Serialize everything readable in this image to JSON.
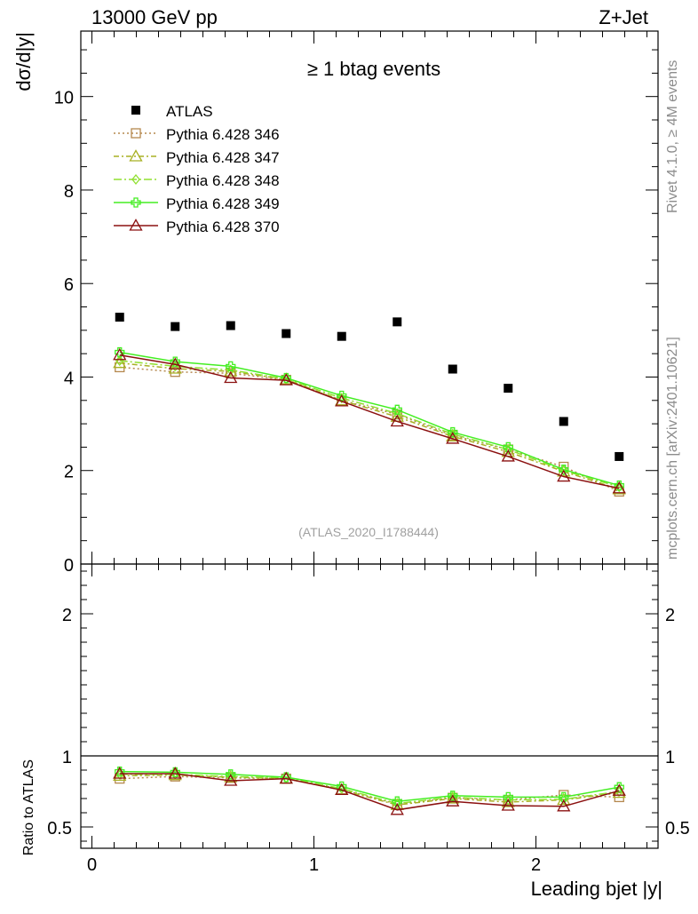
{
  "header": {
    "left": "13000 GeV pp",
    "right": "Z+Jet"
  },
  "side_labels": {
    "rivet": "Rivet 4.1.0, ≥ 4M events",
    "mcplots": "mcplots.cern.ch [arXiv:2401.10621]"
  },
  "chart_data": {
    "type": "scatter",
    "title": "≥ 1 btag events",
    "watermark": "(ATLAS_2020_I1788444)",
    "xlabel": "Leading bjet |y|",
    "ylabel": "dσ/d|y|",
    "ratio_ylabel": "Ratio to ATLAS",
    "xlim": [
      -0.05,
      2.55
    ],
    "ylim": [
      0,
      11.4
    ],
    "ratio_ylim": [
      0.35,
      2.35
    ],
    "x_ticks": [
      {
        "v": 0,
        "label": "0"
      },
      {
        "v": 1,
        "label": "1"
      },
      {
        "v": 2,
        "label": "2"
      }
    ],
    "y_ticks": [
      {
        "v": 0,
        "label": "0"
      },
      {
        "v": 2,
        "label": "2"
      },
      {
        "v": 4,
        "label": "4"
      },
      {
        "v": 6,
        "label": "6"
      },
      {
        "v": 8,
        "label": "8"
      },
      {
        "v": 10,
        "label": "10"
      }
    ],
    "ratio_ticks": [
      {
        "v": 0.5,
        "label": "0.5"
      },
      {
        "v": 1,
        "label": "1"
      },
      {
        "v": 2,
        "label": "2"
      }
    ],
    "x": [
      0.125,
      0.375,
      0.625,
      0.875,
      1.125,
      1.375,
      1.625,
      1.875,
      2.125,
      2.375
    ],
    "data": {
      "name": "ATLAS",
      "values": [
        5.28,
        5.08,
        5.1,
        4.93,
        4.87,
        5.18,
        4.17,
        3.76,
        3.05,
        2.3
      ]
    },
    "series": [
      {
        "name": "Pythia 6.428 346",
        "color": "#b5884e",
        "marker": "square",
        "dash": "2,3",
        "values": [
          4.21,
          4.11,
          4.08,
          3.94,
          3.5,
          3.2,
          2.75,
          2.45,
          2.08,
          1.55
        ],
        "ratio": [
          0.84,
          0.855,
          0.845,
          0.84,
          0.765,
          0.66,
          0.705,
          0.69,
          0.725,
          0.71
        ]
      },
      {
        "name": "Pythia 6.428 347",
        "color": "#a8b024",
        "marker": "triangle",
        "dash": "6,3,2,3",
        "values": [
          4.3,
          4.18,
          4.12,
          3.95,
          3.5,
          3.15,
          2.73,
          2.4,
          1.98,
          1.6
        ],
        "ratio": [
          0.86,
          0.865,
          0.85,
          0.84,
          0.76,
          0.655,
          0.7,
          0.675,
          0.69,
          0.74
        ]
      },
      {
        "name": "Pythia 6.428 348",
        "color": "#90e030",
        "marker": "diamond",
        "dash": "9,3,2,3",
        "values": [
          4.35,
          4.23,
          4.15,
          3.96,
          3.55,
          3.22,
          2.78,
          2.45,
          2.0,
          1.65
        ],
        "ratio": [
          0.87,
          0.87,
          0.855,
          0.845,
          0.77,
          0.665,
          0.71,
          0.69,
          0.695,
          0.75
        ]
      },
      {
        "name": "Pythia 6.428 349",
        "color": "#44ee22",
        "marker": "cross",
        "dash": "",
        "values": [
          4.53,
          4.33,
          4.23,
          3.98,
          3.6,
          3.3,
          2.82,
          2.5,
          2.02,
          1.68
        ],
        "ratio": [
          0.89,
          0.885,
          0.87,
          0.85,
          0.785,
          0.68,
          0.72,
          0.71,
          0.71,
          0.78
        ]
      },
      {
        "name": "Pythia 6.428 370",
        "color": "#8b1010",
        "marker": "triangle",
        "dash": "",
        "values": [
          4.47,
          4.27,
          3.98,
          3.93,
          3.48,
          3.05,
          2.68,
          2.3,
          1.87,
          1.62
        ],
        "ratio": [
          0.875,
          0.875,
          0.825,
          0.84,
          0.76,
          0.62,
          0.68,
          0.65,
          0.645,
          0.755
        ]
      }
    ]
  }
}
